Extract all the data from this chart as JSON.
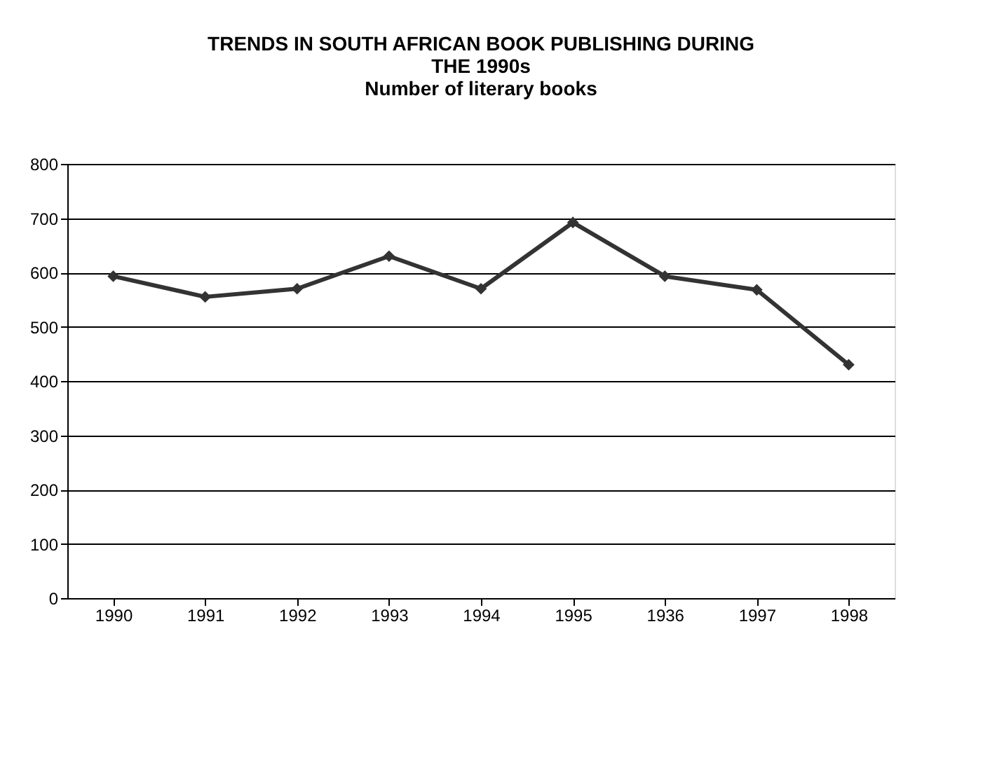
{
  "chart_data": {
    "type": "line",
    "title": [
      "TRENDS IN SOUTH AFRICAN BOOK PUBLISHING DURING",
      "THE 1990s",
      "Number of literary books"
    ],
    "categories": [
      "1990",
      "1991",
      "1992",
      "1993",
      "1994",
      "1995",
      "1936",
      "1997",
      "1998"
    ],
    "series": [
      {
        "color": "#333333",
        "values": [
          593,
          555,
          570,
          630,
          570,
          692,
          593,
          568,
          430
        ]
      }
    ],
    "ylim": [
      0,
      800
    ],
    "yticks": [
      0,
      100,
      200,
      300,
      400,
      500,
      600,
      700,
      800
    ],
    "grid": "y",
    "marker": "diamond",
    "line_style": "solid"
  }
}
